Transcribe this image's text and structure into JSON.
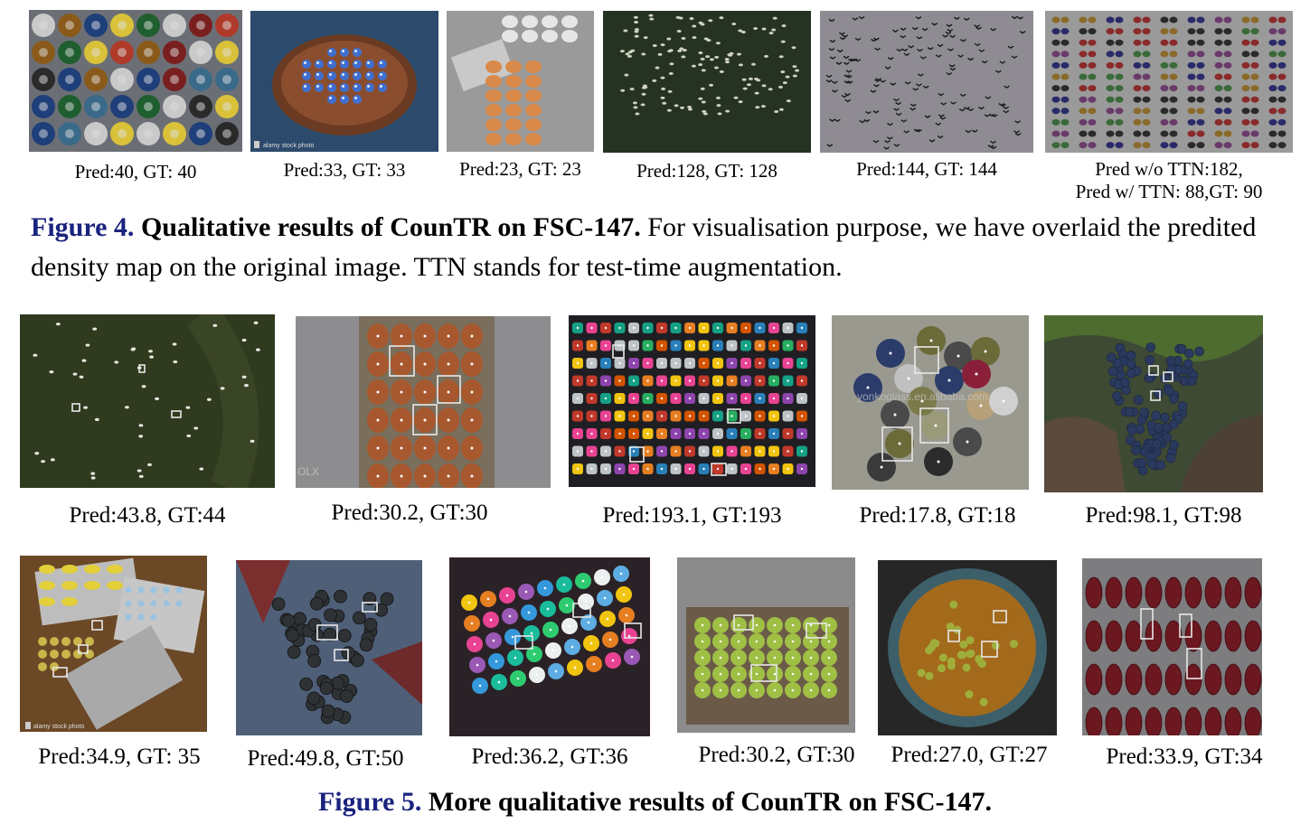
{
  "figure4": {
    "captions": [
      "Pred:40, GT: 40",
      "Pred:33, GT: 33",
      "Pred:23, GT: 23",
      "Pred:128, GT: 128",
      "Pred:144, GT: 144"
    ],
    "caption_last_line1": "Pred w/o TTN:182,",
    "caption_last_line2": "Pred w/ TTN: 88,GT: 90",
    "label": "Figure 4.",
    "title": "Qualitative results of CounTR on FSC-147.",
    "text": "For visualisation purpose, we have overlaid the predited density map on the original image. TTN stands for test-time augmentation."
  },
  "figure5": {
    "row1_captions": [
      "Pred:43.8, GT:44",
      "Pred:30.2, GT:30",
      "Pred:193.1, GT:193",
      "Pred:17.8, GT:18",
      "Pred:98.1, GT:98"
    ],
    "row2_captions": [
      "Pred:34.9, GT: 35",
      "Pred:49.8, GT:50",
      "Pred:36.2, GT:36",
      "Pred:30.2, GT:30",
      "Pred:27.0, GT:27",
      "Pred:33.9, GT:34"
    ],
    "label": "Figure 5.",
    "title": "More qualitative results of CounTR on FSC-147."
  },
  "watermarks": {
    "alamy_1": "alamy stock photo",
    "alamy_2": "alamy stock photo",
    "alibaba": "yonkoglass.en.alibaba.com"
  },
  "colors": {
    "figure_label": "#1a237e",
    "exemplar_box": "#e8e8e8"
  }
}
